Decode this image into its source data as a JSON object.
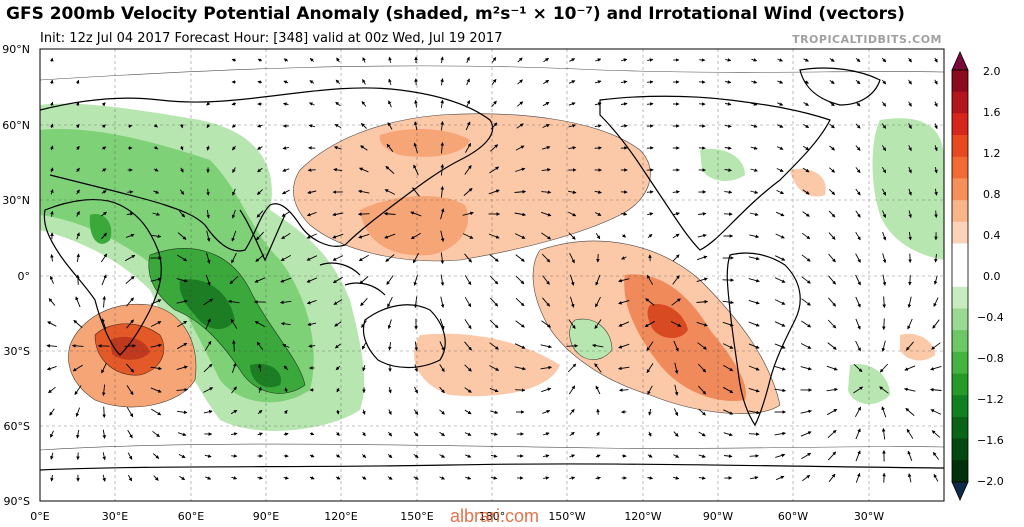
{
  "header": {
    "title": "GFS 200mb Velocity Potential Anomaly (shaded, m²s⁻¹ × 10⁻⁷) and Irrotational Wind (vectors)",
    "subtitle": "Init: 12z Jul 04 2017   Forecast Hour: [348]   valid at 00z Wed, Jul 19 2017",
    "credit": "TROPICALTIDBITS.COM"
  },
  "watermark": "albrari.com",
  "map": {
    "lat_labels": [
      "90°N",
      "60°N",
      "30°N",
      "0°",
      "30°S",
      "60°S",
      "90°S"
    ],
    "lon_labels": [
      "0°E",
      "30°E",
      "60°E",
      "90°E",
      "120°E",
      "150°E",
      "180°",
      "150°W",
      "120°W",
      "90°W",
      "60°W",
      "30°W"
    ],
    "colors": {
      "positive_strong": "#c0391e",
      "positive_mid": "#f08a5a",
      "positive_light": "#fbc8a8",
      "negative_light": "#b8e6b0",
      "negative_mid": "#5cc45a",
      "negative_strong": "#1f8a2a",
      "coast": "#000000"
    }
  },
  "colorbar": {
    "labels": [
      "2.0",
      "1.6",
      "1.2",
      "0.8",
      "0.4",
      "0.0",
      "−0.4",
      "−0.8",
      "−1.2",
      "−1.6",
      "−2.0"
    ],
    "colors": [
      "#8b0a1c",
      "#b3151e",
      "#d6261c",
      "#e8481f",
      "#f06a34",
      "#f5905a",
      "#f9b48a",
      "#fcd3b8",
      "#ffffff",
      "#ffffff",
      "#c8ecc0",
      "#9ad993",
      "#6dc765",
      "#45b33f",
      "#259a28",
      "#128020",
      "#0a6316",
      "#05480f",
      "#02300a"
    ]
  }
}
